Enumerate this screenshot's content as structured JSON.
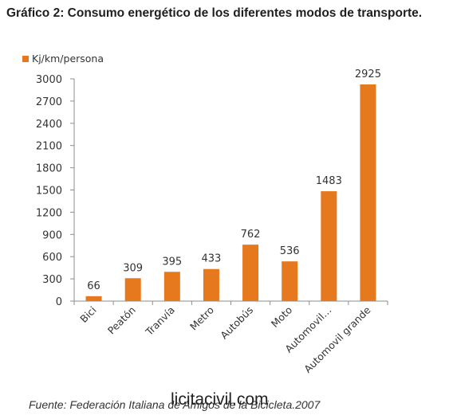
{
  "title": "Gráfico 2: Consumo energético de los diferentes modos de transporte.",
  "source": "Fuente: Federación Italiana de Amigos de la Bicicleta.2007",
  "watermark": "licitacivil.com",
  "colors": {
    "bar": "#E6781E",
    "axis": "#8c8c8c",
    "text": "#333333"
  },
  "chart_data": {
    "type": "bar",
    "categories": [
      "Bici",
      "Peatón",
      "Tranvía",
      "Metro",
      "Autobús",
      "Moto",
      "Automovil…",
      "Automovil grande"
    ],
    "series": [
      {
        "name": "Kj/km/persona",
        "values": [
          66,
          309,
          395,
          433,
          762,
          536,
          1483,
          2925
        ]
      }
    ],
    "data_labels": [
      "66",
      "309",
      "395",
      "433",
      "762",
      "536",
      "1483",
      "2925"
    ],
    "yticks": [
      0,
      300,
      600,
      900,
      1200,
      1500,
      1800,
      2100,
      2400,
      2700,
      3000
    ],
    "ylim": [
      0,
      3000
    ],
    "grid": false,
    "legend": "top-left"
  }
}
